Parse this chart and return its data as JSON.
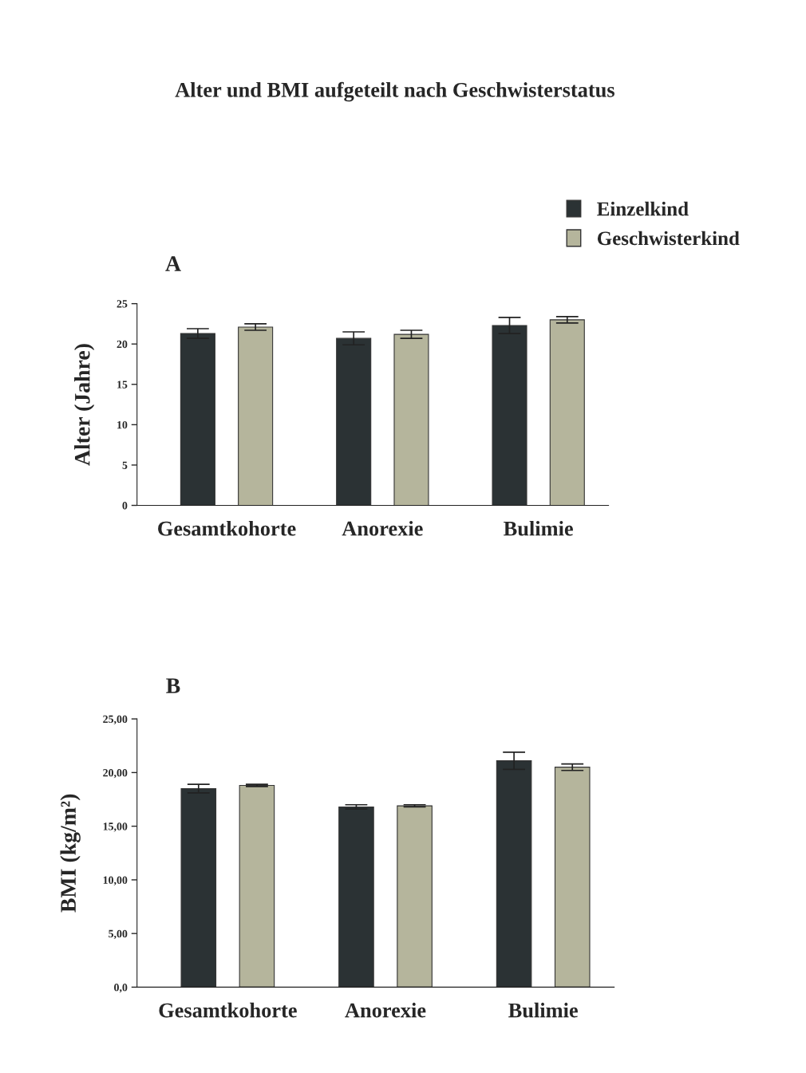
{
  "chart_data": [
    {
      "type": "bar",
      "title": "Alter und BMI aufgeteilt nach Geschwisterstatus",
      "subtitle": "A",
      "ylabel": "Alter (Jahre)",
      "categories": [
        "Gesamtkohorte",
        "Anorexie",
        "Bulimie"
      ],
      "series": [
        {
          "name": "Einzelkind",
          "color": "#2b3234",
          "values": [
            21.3,
            20.7,
            22.3
          ],
          "errors": [
            0.6,
            0.8,
            1.0
          ]
        },
        {
          "name": "Geschwisterkind",
          "color": "#b5b59c",
          "values": [
            22.1,
            21.2,
            23.0
          ],
          "errors": [
            0.4,
            0.5,
            0.4
          ]
        }
      ],
      "ylim": [
        0,
        25
      ],
      "yticks": [
        0,
        5,
        10,
        15,
        20,
        25
      ],
      "grid": false,
      "legend": "top right"
    },
    {
      "type": "bar",
      "subtitle": "B",
      "ylabel": "BMI (kg/m²)",
      "categories": [
        "Gesamtkohorte",
        "Anorexie",
        "Bulimie"
      ],
      "series": [
        {
          "color": "#2b3234",
          "values": [
            18.5,
            16.8,
            21.1
          ],
          "errors": [
            0.4,
            0.2,
            0.8
          ]
        },
        {
          "color": "#b5b59c",
          "values": [
            18.8,
            16.9,
            20.5
          ],
          "errors": [
            0.1,
            0.1,
            0.3
          ]
        }
      ],
      "ylim": [
        0,
        25
      ],
      "yticks": [
        {
          "value": 0,
          "label": "0,0"
        },
        {
          "value": 5,
          "label": "5,00"
        },
        {
          "value": 10,
          "label": "10,00"
        },
        {
          "value": 15,
          "label": "15,00"
        },
        {
          "value": 20,
          "label": "20,00"
        },
        {
          "value": 25,
          "label": "25,00"
        }
      ],
      "grid": false
    }
  ]
}
